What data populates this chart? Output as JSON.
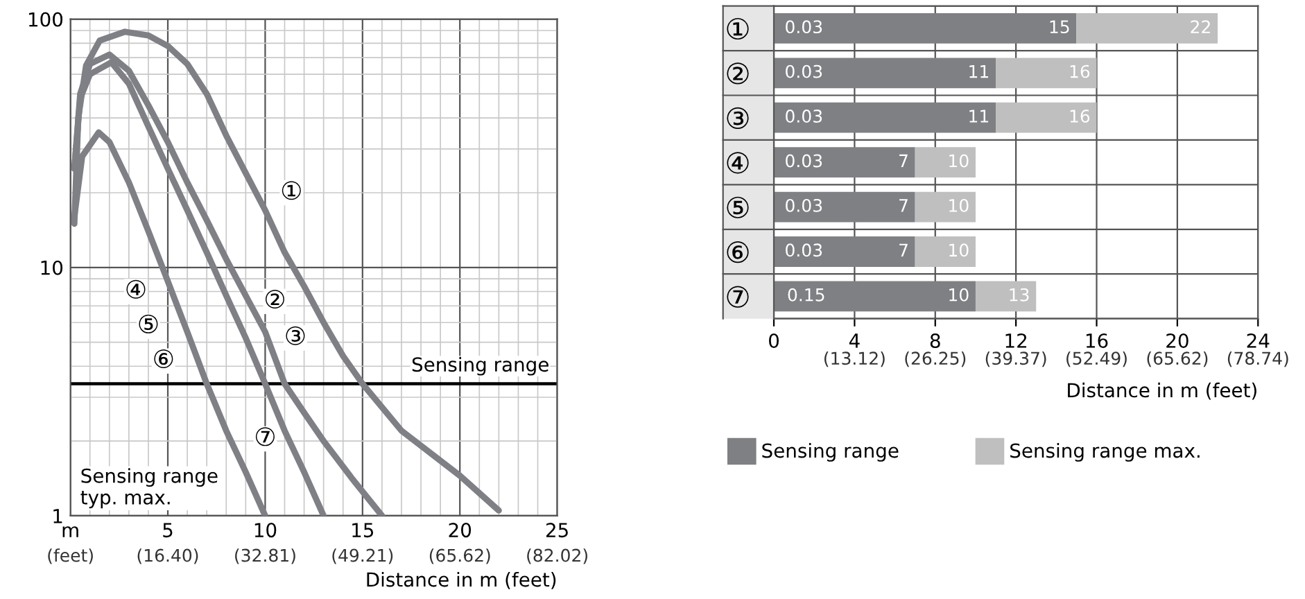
{
  "chart_data": [
    {
      "type": "line",
      "xlabel": "Distance in m (feet)",
      "log": "y",
      "grid": true,
      "line_style": "solid",
      "marker": "none",
      "xlim": [
        0,
        25
      ],
      "ylim": [
        1,
        100
      ],
      "xticks": [
        {
          "value": 0,
          "label": "m"
        },
        {
          "value": 1,
          "label": null
        },
        {
          "value": 2,
          "label": null
        },
        {
          "value": 3,
          "label": null
        },
        {
          "value": 4,
          "label": null
        },
        5,
        {
          "value": 6,
          "label": null
        },
        {
          "value": 7,
          "label": null
        },
        {
          "value": 8,
          "label": null
        },
        {
          "value": 9,
          "label": null
        },
        10,
        {
          "value": 11,
          "label": null
        },
        {
          "value": 12,
          "label": null
        },
        {
          "value": 13,
          "label": null
        },
        {
          "value": 14,
          "label": null
        },
        15,
        {
          "value": 16,
          "label": null
        },
        {
          "value": 17,
          "label": null
        },
        {
          "value": 18,
          "label": null
        },
        {
          "value": 19,
          "label": null
        },
        20,
        {
          "value": 21,
          "label": null
        },
        {
          "value": 22,
          "label": null
        },
        {
          "value": 23,
          "label": null
        },
        {
          "value": 24,
          "label": null
        },
        25
      ],
      "x2lim": [
        0,
        82.02
      ],
      "x2ticks": [
        {
          "value": 0,
          "label": "(feet)"
        },
        {
          "value": 16.4,
          "label": "(16.40)"
        },
        {
          "value": 32.81,
          "label": "(32.81)"
        },
        {
          "value": 49.21,
          "label": "(49.21)"
        },
        {
          "value": 65.62,
          "label": "(65.62)"
        },
        {
          "value": 82.02,
          "label": "(82.02)"
        }
      ],
      "yticks": [
        1,
        {
          "value": 2,
          "label": null
        },
        {
          "value": 3,
          "label": null
        },
        {
          "value": 4,
          "label": null
        },
        {
          "value": 5,
          "label": null
        },
        {
          "value": 6,
          "label": null
        },
        {
          "value": 7,
          "label": null
        },
        {
          "value": 8,
          "label": null
        },
        {
          "value": 9,
          "label": null
        },
        10,
        {
          "value": 20,
          "label": null
        },
        {
          "value": 30,
          "label": null
        },
        {
          "value": 40,
          "label": null
        },
        {
          "value": 50,
          "label": null
        },
        {
          "value": 60,
          "label": null
        },
        {
          "value": 70,
          "label": null
        },
        {
          "value": 80,
          "label": null
        },
        {
          "value": 90,
          "label": null
        },
        100
      ],
      "series": [
        {
          "color": "#7f8085",
          "x": [
            0.2,
            0.4,
            0.8,
            1.5,
            2.8,
            4,
            5,
            6,
            7,
            8,
            9,
            10,
            11,
            12,
            13,
            14,
            15,
            17,
            20,
            22
          ],
          "values": [
            15,
            40,
            65,
            82,
            89,
            86,
            78,
            66,
            50,
            34,
            24,
            17,
            11.5,
            8.4,
            6,
            4.4,
            3.4,
            2.2,
            1.45,
            1.05
          ]
        },
        {
          "color": "#7f8085",
          "x": [
            0.2,
            0.5,
            1,
            2,
            3,
            4,
            5,
            6,
            7,
            8,
            9,
            10,
            11,
            12,
            13,
            14.5,
            16
          ],
          "values": [
            25,
            50,
            66,
            72,
            62,
            45,
            32,
            22,
            15.5,
            10.8,
            7.7,
            5.5,
            3.4,
            2.6,
            2.0,
            1.4,
            1.0
          ]
        },
        {
          "color": "#7f8085",
          "x": [
            0.2,
            0.5,
            1,
            2.1,
            3,
            4,
            5,
            6,
            7,
            8,
            9,
            10,
            11,
            12,
            13
          ],
          "values": [
            25,
            48,
            60,
            67,
            55,
            37,
            25,
            17,
            11.5,
            7.7,
            5.2,
            3.4,
            2.2,
            1.5,
            1.0
          ]
        },
        {
          "color": "#7f8085",
          "x": [
            0.2,
            0.6,
            1.45,
            2,
            3,
            4,
            5,
            6,
            7,
            8,
            9,
            10
          ],
          "values": [
            16,
            28,
            35,
            32,
            22,
            14,
            8.8,
            5.5,
            3.4,
            2.2,
            1.5,
            1.0
          ]
        }
      ],
      "ref_lines": [
        {
          "axis": "y",
          "value": 3.4,
          "label": "Sensing range",
          "color": "#000000"
        }
      ],
      "annotations": [
        {
          "text": "①",
          "x": 11.35,
          "y": 20
        },
        {
          "text": "②",
          "x": 10.5,
          "y": 7.3
        },
        {
          "text": "③",
          "x": 11.55,
          "y": 5.2
        },
        {
          "text": "④",
          "x": 3.36,
          "y": 8
        },
        {
          "text": "⑤",
          "x": 4,
          "y": 5.8
        },
        {
          "text": "⑥",
          "x": 4.78,
          "y": 4.2
        },
        {
          "text": "⑦",
          "x": 10,
          "y": 2.04
        },
        "Sensing range\ntyp. max."
      ]
    },
    {
      "type": "bar",
      "orientation": "horizontal",
      "stacked": true,
      "grid": true,
      "legend": "bottom left",
      "xlabel": "Distance in m (feet)",
      "categories": [
        "①",
        "②",
        "③",
        "④",
        "⑤",
        "⑥",
        "⑦"
      ],
      "xlim": [
        0,
        24
      ],
      "xticks": [
        0,
        4,
        8,
        12,
        16,
        20,
        24
      ],
      "x2lim": [
        0,
        78.74
      ],
      "x2ticks": [
        {
          "value": 13.12,
          "label": "(13.12)"
        },
        {
          "value": 26.25,
          "label": "(26.25)"
        },
        {
          "value": 39.37,
          "label": "(39.37)"
        },
        {
          "value": 52.49,
          "label": "(52.49)"
        },
        {
          "value": 65.62,
          "label": "(65.62)"
        },
        {
          "value": 78.74,
          "label": "(78.74)"
        }
      ],
      "series": [
        {
          "name": "Sensing range",
          "color": "#7f8083",
          "values": [
            15,
            11,
            11,
            7,
            7,
            7,
            10
          ],
          "value_labels": [
            "15",
            "11",
            "11",
            "7",
            "7",
            "7",
            "10"
          ]
        },
        {
          "name": "Sensing range max.",
          "color": "#bfbfbf",
          "values": [
            7,
            5,
            5,
            3,
            3,
            3,
            3
          ]
        }
      ],
      "totals": [
        "22",
        "16",
        "16",
        "10",
        "10",
        "10",
        "13"
      ],
      "annotations": [
        {
          "text": "0.03",
          "x": 0.03,
          "y": "①"
        },
        {
          "text": "0.03",
          "x": 0.03,
          "y": "②"
        },
        {
          "text": "0.03",
          "x": 0.03,
          "y": "③"
        },
        {
          "text": "0.03",
          "x": 0.03,
          "y": "④"
        },
        {
          "text": "0.03",
          "x": 0.03,
          "y": "⑤"
        },
        {
          "text": "0.03",
          "x": 0.03,
          "y": "⑥"
        },
        {
          "text": "0.15",
          "x": 0.15,
          "y": "⑦"
        }
      ]
    }
  ]
}
